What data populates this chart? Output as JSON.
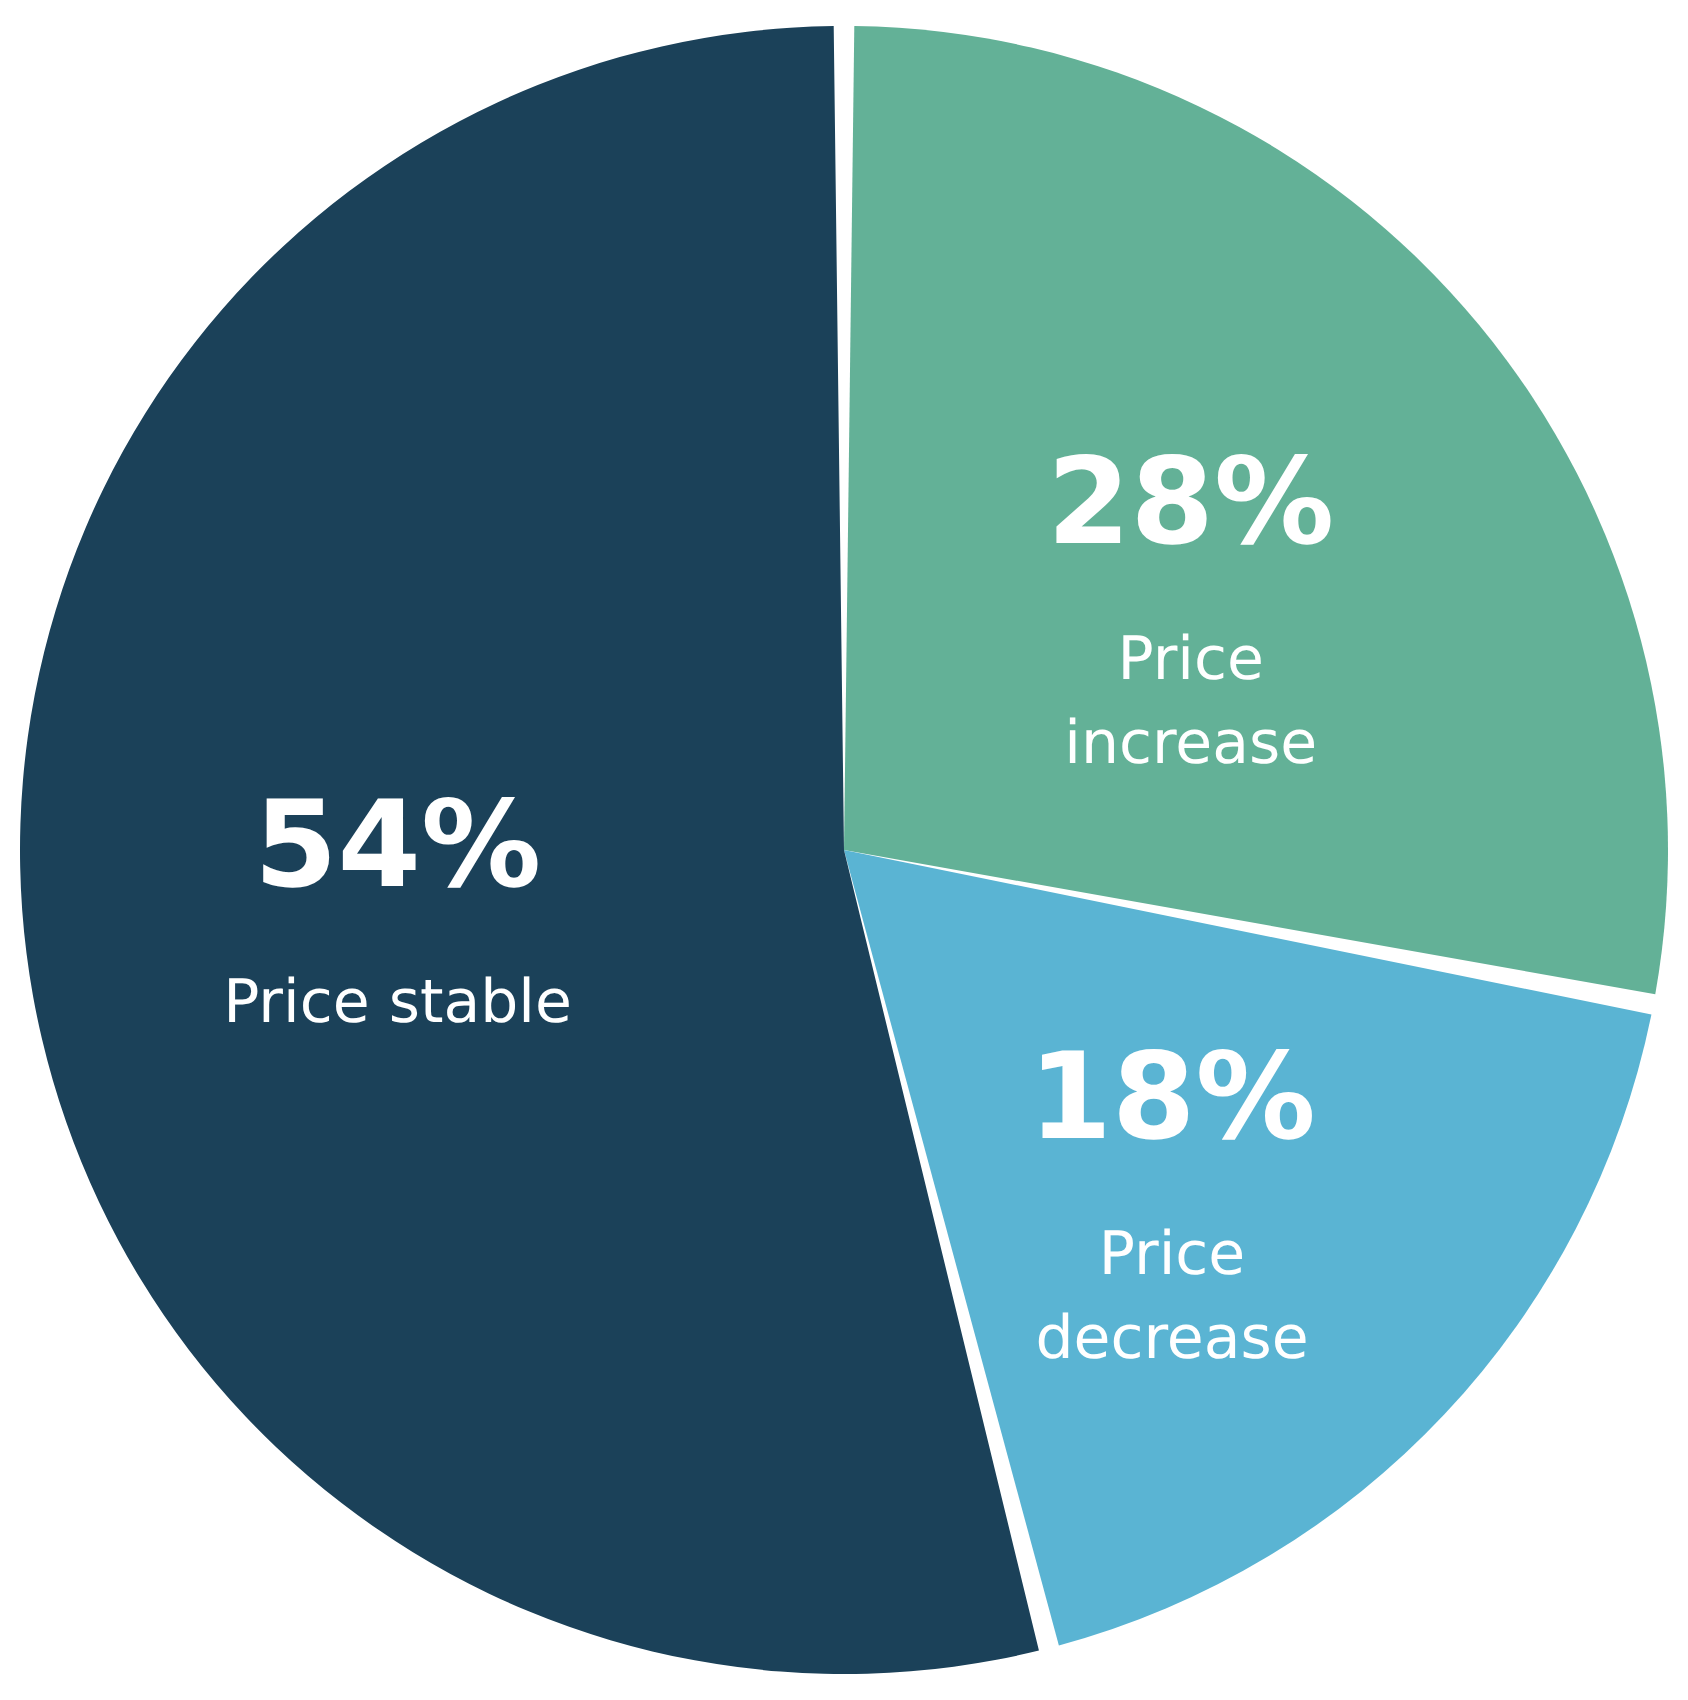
{
  "chart_data": {
    "type": "pie",
    "categories": [
      "Price increase",
      "Price decrease",
      "Price stable"
    ],
    "values": [
      28,
      18,
      54
    ],
    "value_labels": [
      "28%",
      "18%",
      "54%"
    ],
    "colors": [
      "#63b197",
      "#5ab4d3",
      "#1b4159"
    ]
  }
}
